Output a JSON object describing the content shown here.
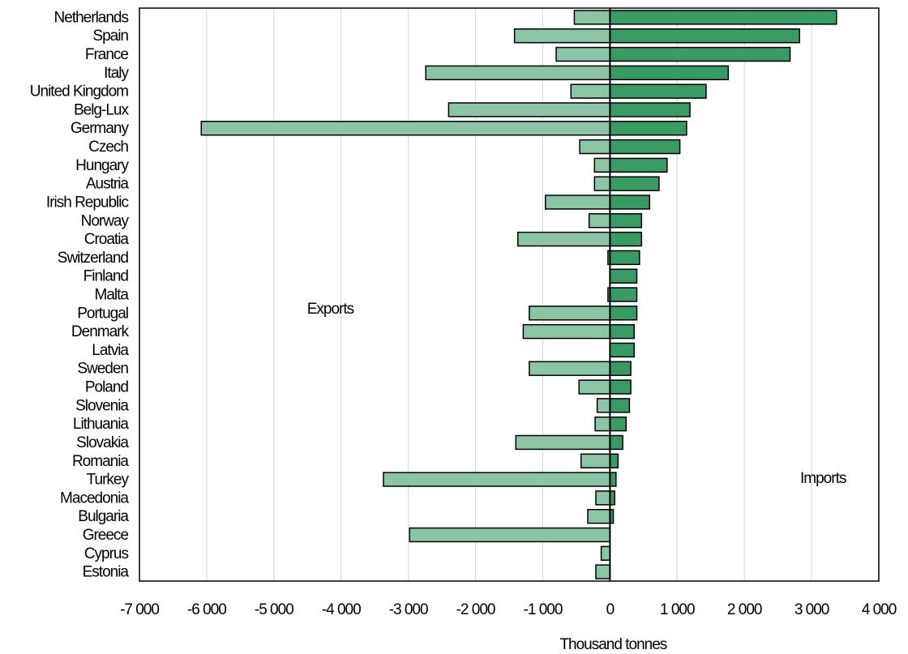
{
  "chart_data": {
    "type": "bar",
    "orientation": "horizontal",
    "title": "",
    "xlabel": "Thousand tonnes",
    "ylabel": "",
    "xlim": [
      -7000,
      4000
    ],
    "xticks": [
      -7000,
      -6000,
      -5000,
      -4000,
      -3000,
      -2000,
      -1000,
      0,
      1000,
      2000,
      3000,
      4000
    ],
    "xtick_labels": [
      "-7 000",
      "-6 000",
      "-5 000",
      "-4 000",
      "-3 000",
      "-2 000",
      "-1 000",
      "0",
      "1 000",
      "2 000",
      "3 000",
      "4 000"
    ],
    "grid": "vertical",
    "legend": "none",
    "annotations": [
      "Exports",
      "Imports"
    ],
    "categories": [
      "Netherlands",
      "Spain",
      "France",
      "Italy",
      "United Kingdom",
      "Belg-Lux",
      "Germany",
      "Czech",
      "Hungary",
      "Austria",
      "Irish Republic",
      "Norway",
      "Croatia",
      "Switzerland",
      "Finland",
      "Malta",
      "Portugal",
      "Denmark",
      "Latvia",
      "Sweden",
      "Poland",
      "Slovenia",
      "Lithuania",
      "Slovakia",
      "Romania",
      "Turkey",
      "Macedonia",
      "Bulgaria",
      "Greece",
      "Cyprus",
      "Estonia"
    ],
    "series": [
      {
        "name": "Exports",
        "color": "#8cc5a6",
        "values": [
          -530,
          -1420,
          -800,
          -2740,
          -580,
          -2400,
          -6080,
          -450,
          -230,
          -230,
          -960,
          -310,
          -1370,
          -30,
          0,
          -30,
          -1200,
          -1290,
          0,
          -1200,
          -460,
          -190,
          -220,
          -1400,
          -430,
          -3370,
          -210,
          -330,
          -2980,
          -130,
          -210
        ]
      },
      {
        "name": "Imports",
        "color": "#3a9a64",
        "values": [
          3370,
          2820,
          2680,
          1760,
          1430,
          1190,
          1140,
          1040,
          850,
          730,
          590,
          470,
          470,
          440,
          400,
          400,
          400,
          360,
          360,
          310,
          310,
          290,
          240,
          190,
          120,
          90,
          70,
          50,
          0,
          0,
          0
        ]
      }
    ]
  }
}
